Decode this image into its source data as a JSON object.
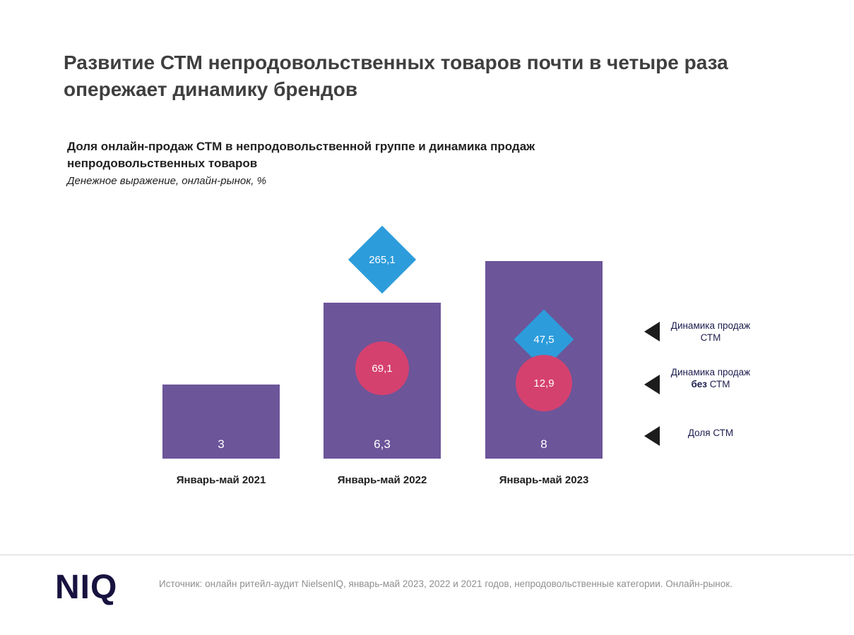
{
  "slide": {
    "title": "Развитие СТМ непродовольственных товаров почти в четыре раза опережает динамику брендов",
    "chart_heading": "Доля онлайн-продаж СТМ в непродовольственной группе и динамика продаж непродовольственных товаров",
    "chart_subheading": "Денежное выражение, онлайн-рынок, %"
  },
  "chart_data": {
    "type": "bar",
    "categories": [
      "Январь-май 2021",
      "Январь-май 2022",
      "Январь-май 2023"
    ],
    "series": [
      {
        "name": "Доля СТМ",
        "marker": "bar",
        "color": "#6c5599",
        "values": [
          3,
          6.3,
          8
        ],
        "labels": [
          "3",
          "6,3",
          "8"
        ]
      },
      {
        "name": "Динамика продаж СТМ",
        "marker": "diamond",
        "color": "#2d9cdb",
        "values": [
          null,
          265.1,
          47.5
        ],
        "labels": [
          null,
          "265,1",
          "47,5"
        ]
      },
      {
        "name": "Динамика продаж без СТМ",
        "marker": "circle",
        "color": "#d5416f",
        "values": [
          null,
          69.1,
          12.9
        ],
        "labels": [
          null,
          "69,1",
          "12,9"
        ]
      }
    ],
    "ylim": [
      0,
      9
    ],
    "grid": false,
    "legend_position": "right"
  },
  "legend": {
    "items": [
      {
        "text": "Динамика продаж СТМ"
      },
      {
        "prefix": "Динамика продаж ",
        "bold": "без",
        "suffix": " СТМ"
      },
      {
        "text": "Доля СТМ"
      }
    ]
  },
  "footer": {
    "logo": "NIQ",
    "source": "Источник: онлайн ритейл-аудит NielsenIQ, январь-май 2023, 2022 и 2021 годов, непродовольственные категории. Онлайн-рынок."
  }
}
